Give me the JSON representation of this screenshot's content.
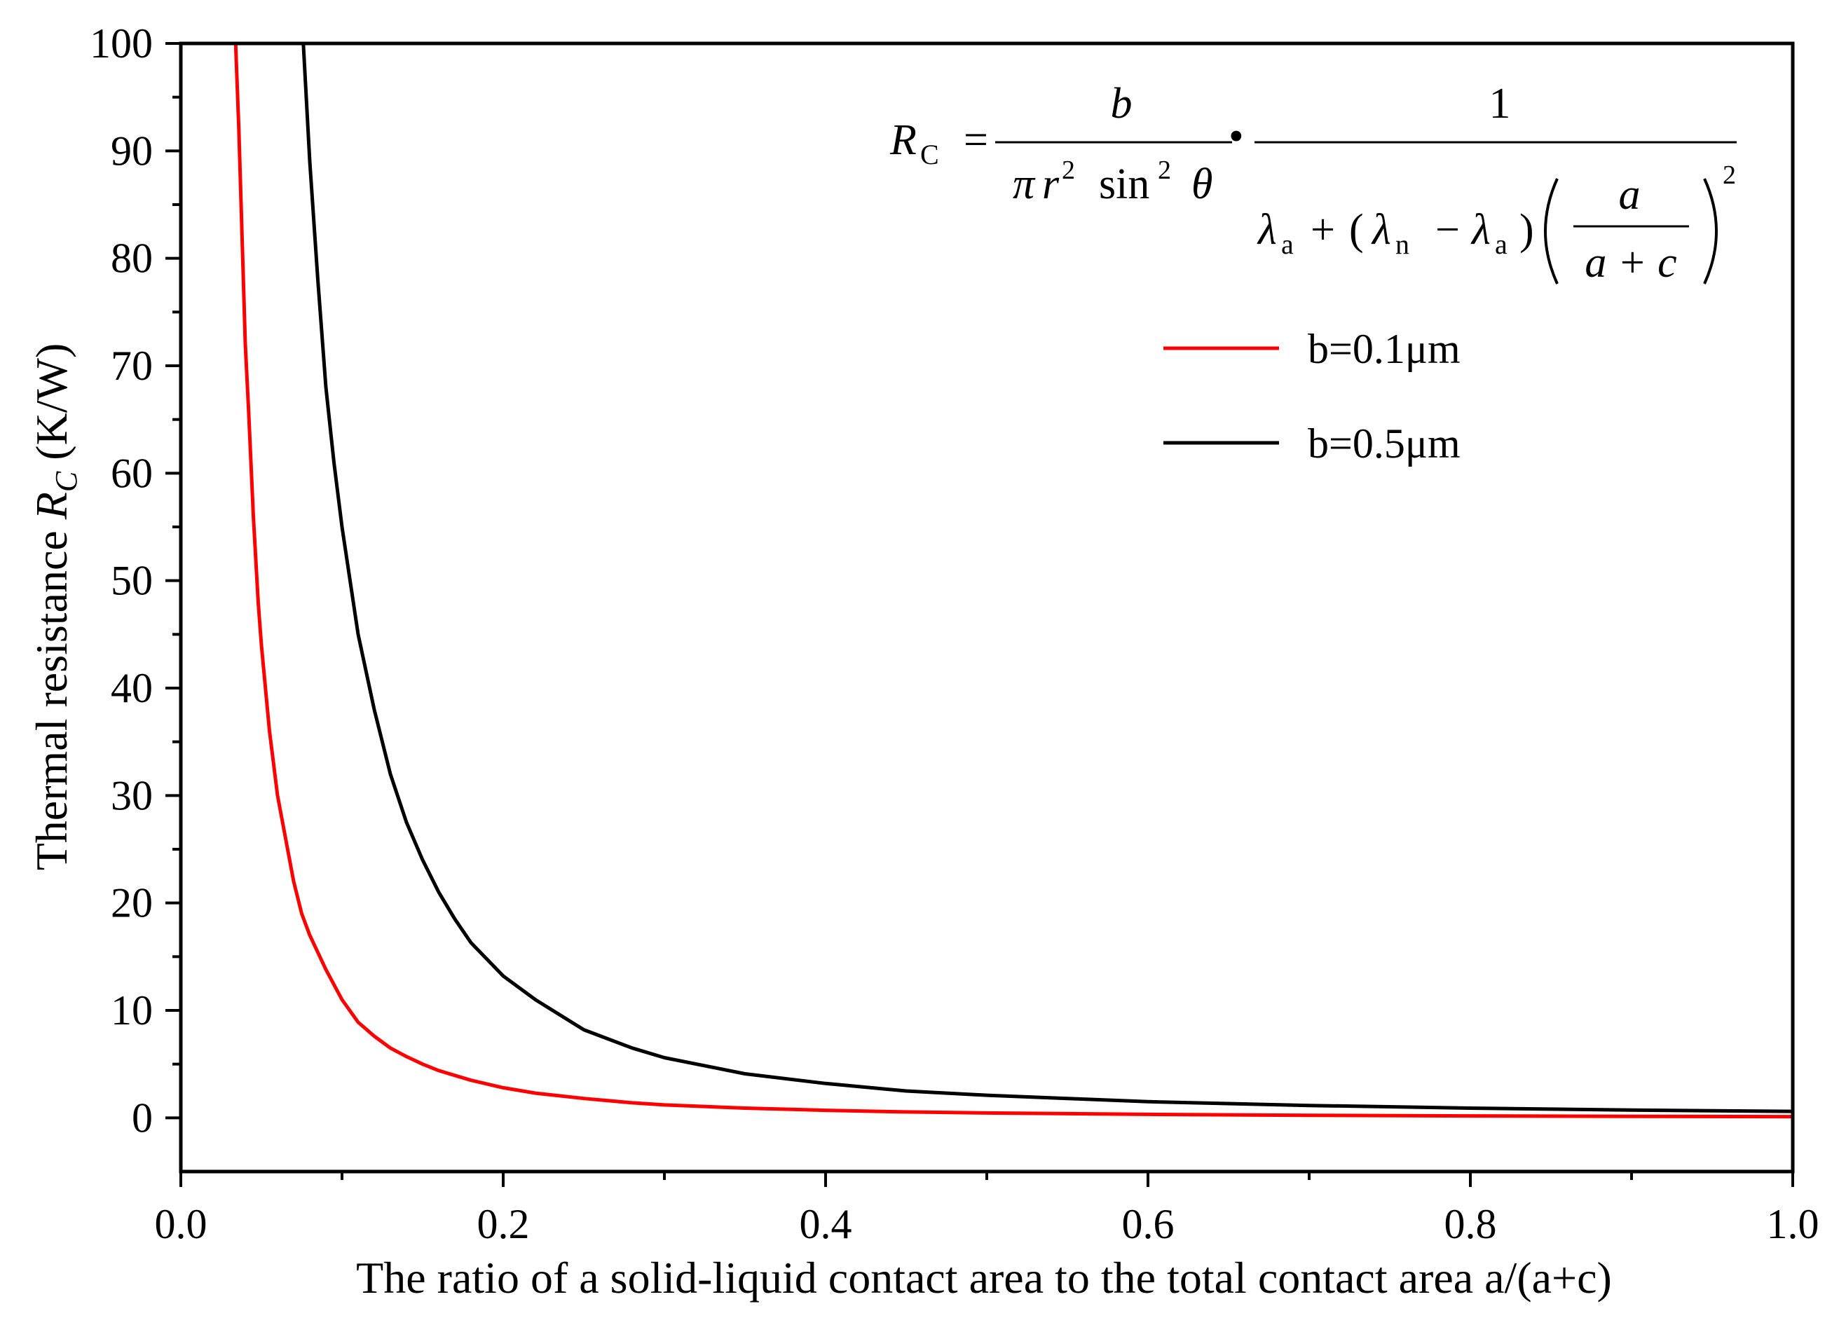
{
  "chart_data": {
    "type": "line",
    "title": "",
    "xlabel": "The ratio of a solid-liquid contact area to the total contact area a/(a+c)",
    "ylabel_prefix": "Thermal resistance ",
    "ylabel_symbol": "R",
    "ylabel_symbol_sub": "C",
    "ylabel_unit": " (K/W)",
    "xlim": [
      0.0,
      1.0
    ],
    "ylim": [
      -5,
      100
    ],
    "x_major_ticks": [
      "0.0",
      "0.2",
      "0.4",
      "0.6",
      "0.8",
      "1.0"
    ],
    "y_major_ticks": [
      "0",
      "10",
      "20",
      "30",
      "40",
      "50",
      "60",
      "70",
      "80",
      "90",
      "100"
    ],
    "grid": false,
    "legend_position": "upper-right",
    "series": [
      {
        "name": "b=0.1μm",
        "color": "#ff0000",
        "x": [
          0.034,
          0.036,
          0.038,
          0.04,
          0.042,
          0.045,
          0.048,
          0.05,
          0.055,
          0.06,
          0.065,
          0.07,
          0.075,
          0.08,
          0.09,
          0.1,
          0.11,
          0.12,
          0.13,
          0.14,
          0.15,
          0.16,
          0.18,
          0.2,
          0.22,
          0.25,
          0.28,
          0.3,
          0.35,
          0.4,
          0.45,
          0.5,
          0.6,
          0.7,
          0.8,
          0.9,
          1.0
        ],
        "y": [
          100,
          92,
          82,
          72,
          66,
          56,
          48,
          44,
          36,
          30,
          26,
          22,
          19,
          17,
          13.8,
          11,
          8.9,
          7.6,
          6.5,
          5.7,
          5.0,
          4.4,
          3.5,
          2.8,
          2.3,
          1.8,
          1.4,
          1.2,
          0.9,
          0.7,
          0.55,
          0.45,
          0.32,
          0.24,
          0.18,
          0.14,
          0.11
        ]
      },
      {
        "name": "b=0.5μm",
        "color": "#000000",
        "x": [
          0.076,
          0.08,
          0.085,
          0.09,
          0.095,
          0.1,
          0.11,
          0.12,
          0.13,
          0.14,
          0.15,
          0.16,
          0.17,
          0.18,
          0.2,
          0.22,
          0.25,
          0.28,
          0.3,
          0.35,
          0.4,
          0.45,
          0.5,
          0.55,
          0.6,
          0.7,
          0.8,
          0.9,
          1.0
        ],
        "y": [
          100,
          89,
          78,
          68,
          61,
          55,
          45,
          38,
          32,
          27.5,
          24,
          21,
          18.5,
          16.3,
          13.2,
          11,
          8.2,
          6.5,
          5.6,
          4.1,
          3.2,
          2.5,
          2.1,
          1.8,
          1.5,
          1.15,
          0.9,
          0.72,
          0.6
        ]
      }
    ],
    "annotation": {
      "lhs": "R",
      "lhs_sub": "C",
      "equals": "=",
      "frac1_num": "b",
      "frac1_pi": "π",
      "frac1_r": "r",
      "frac1_sup": "2",
      "frac1_sin": "sin",
      "frac1_theta": "θ",
      "dot": "•",
      "frac2_num": "1",
      "lambda": "λ",
      "sub_a": "a",
      "sub_n": "n",
      "plus": "+",
      "minus": "−",
      "paren_open": "(",
      "paren_close": ")",
      "inner_num": "a",
      "inner_den": "a + c",
      "outer_sup": "2"
    }
  }
}
